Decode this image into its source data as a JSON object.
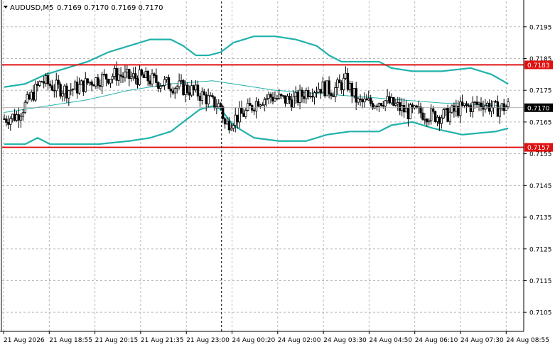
{
  "header": {
    "symbol_timeframe": "AUDUSD,M5",
    "ohlc": "0.7169 0.7170 0.7169 0.7170"
  },
  "colors": {
    "grid": "#b8b8b8",
    "axis": "#000000",
    "candle": "#000000",
    "band": "#20b2aa",
    "support_resistance": "#e01010",
    "current_price": "#000000"
  },
  "chart_data": {
    "type": "candlestick",
    "title": "AUDUSD,M5",
    "ylim": [
      0.7099,
      0.7203
    ],
    "y_ticks": [
      "0.7195",
      "0.7185",
      "0.7175",
      "0.7165",
      "0.7155",
      "0.7145",
      "0.7135",
      "0.7125",
      "0.7115",
      "0.7105"
    ],
    "x_tick_labels": [
      "21 Aug 2026",
      "21 Aug 18:55",
      "21 Aug 20:15",
      "21 Aug 21:35",
      "21 Aug 23:00",
      "24 Aug 00:20",
      "24 Aug 02:00",
      "24 Aug 03:30",
      "24 Aug 04:50",
      "24 Aug 06:10",
      "24 Aug 07:30",
      "24 Aug 08:55"
    ],
    "session_separator_after_index": 104,
    "candles_count": 243,
    "close_path": [
      [
        0,
        0.7166
      ],
      [
        6,
        0.7167
      ],
      [
        12,
        0.7172
      ],
      [
        18,
        0.7178
      ],
      [
        24,
        0.7176
      ],
      [
        30,
        0.7175
      ],
      [
        36,
        0.7176
      ],
      [
        42,
        0.7178
      ],
      [
        48,
        0.7179
      ],
      [
        54,
        0.718
      ],
      [
        60,
        0.7179
      ],
      [
        66,
        0.7179
      ],
      [
        72,
        0.7178
      ],
      [
        78,
        0.7177
      ],
      [
        84,
        0.7176
      ],
      [
        90,
        0.7175
      ],
      [
        96,
        0.7173
      ],
      [
        100,
        0.7171
      ],
      [
        104,
        0.717
      ],
      [
        106,
        0.7164
      ],
      [
        110,
        0.7166
      ],
      [
        116,
        0.7168
      ],
      [
        122,
        0.7172
      ],
      [
        128,
        0.7173
      ],
      [
        134,
        0.7172
      ],
      [
        140,
        0.7172
      ],
      [
        146,
        0.7175
      ],
      [
        152,
        0.7176
      ],
      [
        158,
        0.7175
      ],
      [
        164,
        0.7178
      ],
      [
        170,
        0.7171
      ],
      [
        176,
        0.7171
      ],
      [
        182,
        0.7172
      ],
      [
        188,
        0.717
      ],
      [
        194,
        0.7168
      ],
      [
        200,
        0.7168
      ],
      [
        206,
        0.7167
      ],
      [
        212,
        0.7167
      ],
      [
        218,
        0.7169
      ],
      [
        224,
        0.717
      ],
      [
        230,
        0.7171
      ],
      [
        236,
        0.7169
      ],
      [
        242,
        0.717
      ]
    ],
    "bollinger": {
      "upper": [
        [
          0,
          0.7176
        ],
        [
          10,
          0.7177
        ],
        [
          20,
          0.718
        ],
        [
          30,
          0.7182
        ],
        [
          40,
          0.7184
        ],
        [
          50,
          0.7187
        ],
        [
          60,
          0.7189
        ],
        [
          70,
          0.7191
        ],
        [
          80,
          0.7191
        ],
        [
          86,
          0.7189
        ],
        [
          92,
          0.7186
        ],
        [
          98,
          0.7186
        ],
        [
          104,
          0.7187
        ],
        [
          110,
          0.719
        ],
        [
          120,
          0.7192
        ],
        [
          130,
          0.7192
        ],
        [
          140,
          0.7191
        ],
        [
          150,
          0.7189
        ],
        [
          156,
          0.7186
        ],
        [
          162,
          0.7184
        ],
        [
          170,
          0.7184
        ],
        [
          180,
          0.7184
        ],
        [
          186,
          0.7182
        ],
        [
          196,
          0.7181
        ],
        [
          210,
          0.7181
        ],
        [
          224,
          0.7182
        ],
        [
          234,
          0.718
        ],
        [
          242,
          0.7177
        ]
      ],
      "middle": [
        [
          0,
          0.7168
        ],
        [
          20,
          0.717
        ],
        [
          40,
          0.7172
        ],
        [
          60,
          0.7175
        ],
        [
          80,
          0.7177
        ],
        [
          100,
          0.7178
        ],
        [
          110,
          0.7177
        ],
        [
          130,
          0.7175
        ],
        [
          150,
          0.7174
        ],
        [
          170,
          0.7173
        ],
        [
          190,
          0.7172
        ],
        [
          210,
          0.7171
        ],
        [
          242,
          0.717
        ]
      ],
      "lower": [
        [
          0,
          0.7158
        ],
        [
          10,
          0.7158
        ],
        [
          16,
          0.716
        ],
        [
          22,
          0.7158
        ],
        [
          30,
          0.7158
        ],
        [
          45,
          0.7158
        ],
        [
          60,
          0.7159
        ],
        [
          70,
          0.716
        ],
        [
          80,
          0.7162
        ],
        [
          86,
          0.7165
        ],
        [
          94,
          0.7169
        ],
        [
          100,
          0.717
        ],
        [
          104,
          0.7169
        ],
        [
          110,
          0.7164
        ],
        [
          120,
          0.716
        ],
        [
          132,
          0.7159
        ],
        [
          145,
          0.7159
        ],
        [
          155,
          0.7161
        ],
        [
          166,
          0.7162
        ],
        [
          180,
          0.7162
        ],
        [
          186,
          0.7164
        ],
        [
          196,
          0.7165
        ],
        [
          206,
          0.7163
        ],
        [
          220,
          0.7161
        ],
        [
          236,
          0.7162
        ],
        [
          242,
          0.7163
        ]
      ]
    },
    "horizontal_lines": [
      {
        "label": "0.7183",
        "value": 0.7183
      },
      {
        "label": "0.7157",
        "value": 0.7157
      }
    ],
    "current_price": {
      "label": "0.7170",
      "value": 0.71695
    },
    "grid": true
  }
}
